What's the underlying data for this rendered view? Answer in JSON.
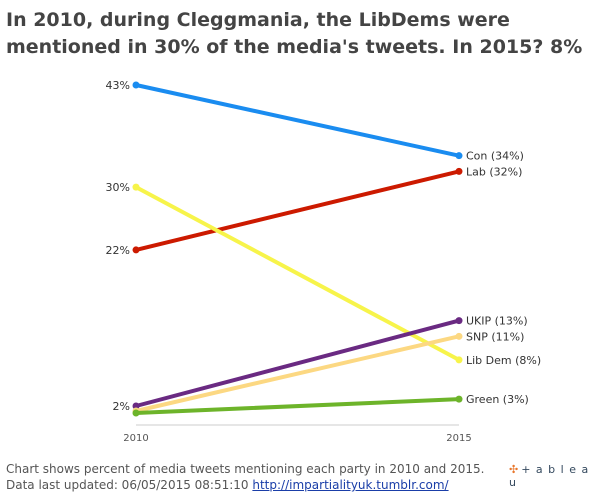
{
  "title": "In 2010, during Cleggmania, the LibDems were mentioned in 30% of the media's tweets. In 2015? 8%",
  "footer": {
    "line1": "Chart shows percent of media tweets mentioning each party in 2010 and 2015.",
    "line2_prefix": "Data last updated: 06/05/2015 08:51:10 ",
    "link_text": "http://impartialityuk.tumblr.com/"
  },
  "logo": {
    "mark": "✣",
    "text": "+ a b l e a u"
  },
  "chart_data": {
    "type": "line",
    "x": [
      "2010",
      "2015"
    ],
    "ylim": [
      2,
      43
    ],
    "grid": false,
    "series": [
      {
        "name": "Con",
        "values": [
          43,
          34
        ],
        "color": "#1a8cf0",
        "start_label": "43%",
        "end_label": "Con (34%)"
      },
      {
        "name": "Lab",
        "values": [
          22,
          32
        ],
        "color": "#cc1a00",
        "start_label": "22%",
        "end_label": "Lab (32%)"
      },
      {
        "name": "Lib Dem",
        "values": [
          30,
          8
        ],
        "color": "#f7f44a",
        "start_label": "30%",
        "end_label": "Lib Dem (8%)"
      },
      {
        "name": "UKIP",
        "values": [
          2,
          13
        ],
        "color": "#6a2a82",
        "start_label": "2%",
        "end_label": "UKIP (13%)"
      },
      {
        "name": "SNP",
        "values": [
          2,
          11
        ],
        "color": "#fcd882",
        "start_label": "",
        "end_label": "SNP (11%)"
      },
      {
        "name": "Green",
        "values": [
          2,
          3
        ],
        "color": "#6db42a",
        "start_label": "",
        "end_label": "Green (3%)"
      }
    ]
  }
}
